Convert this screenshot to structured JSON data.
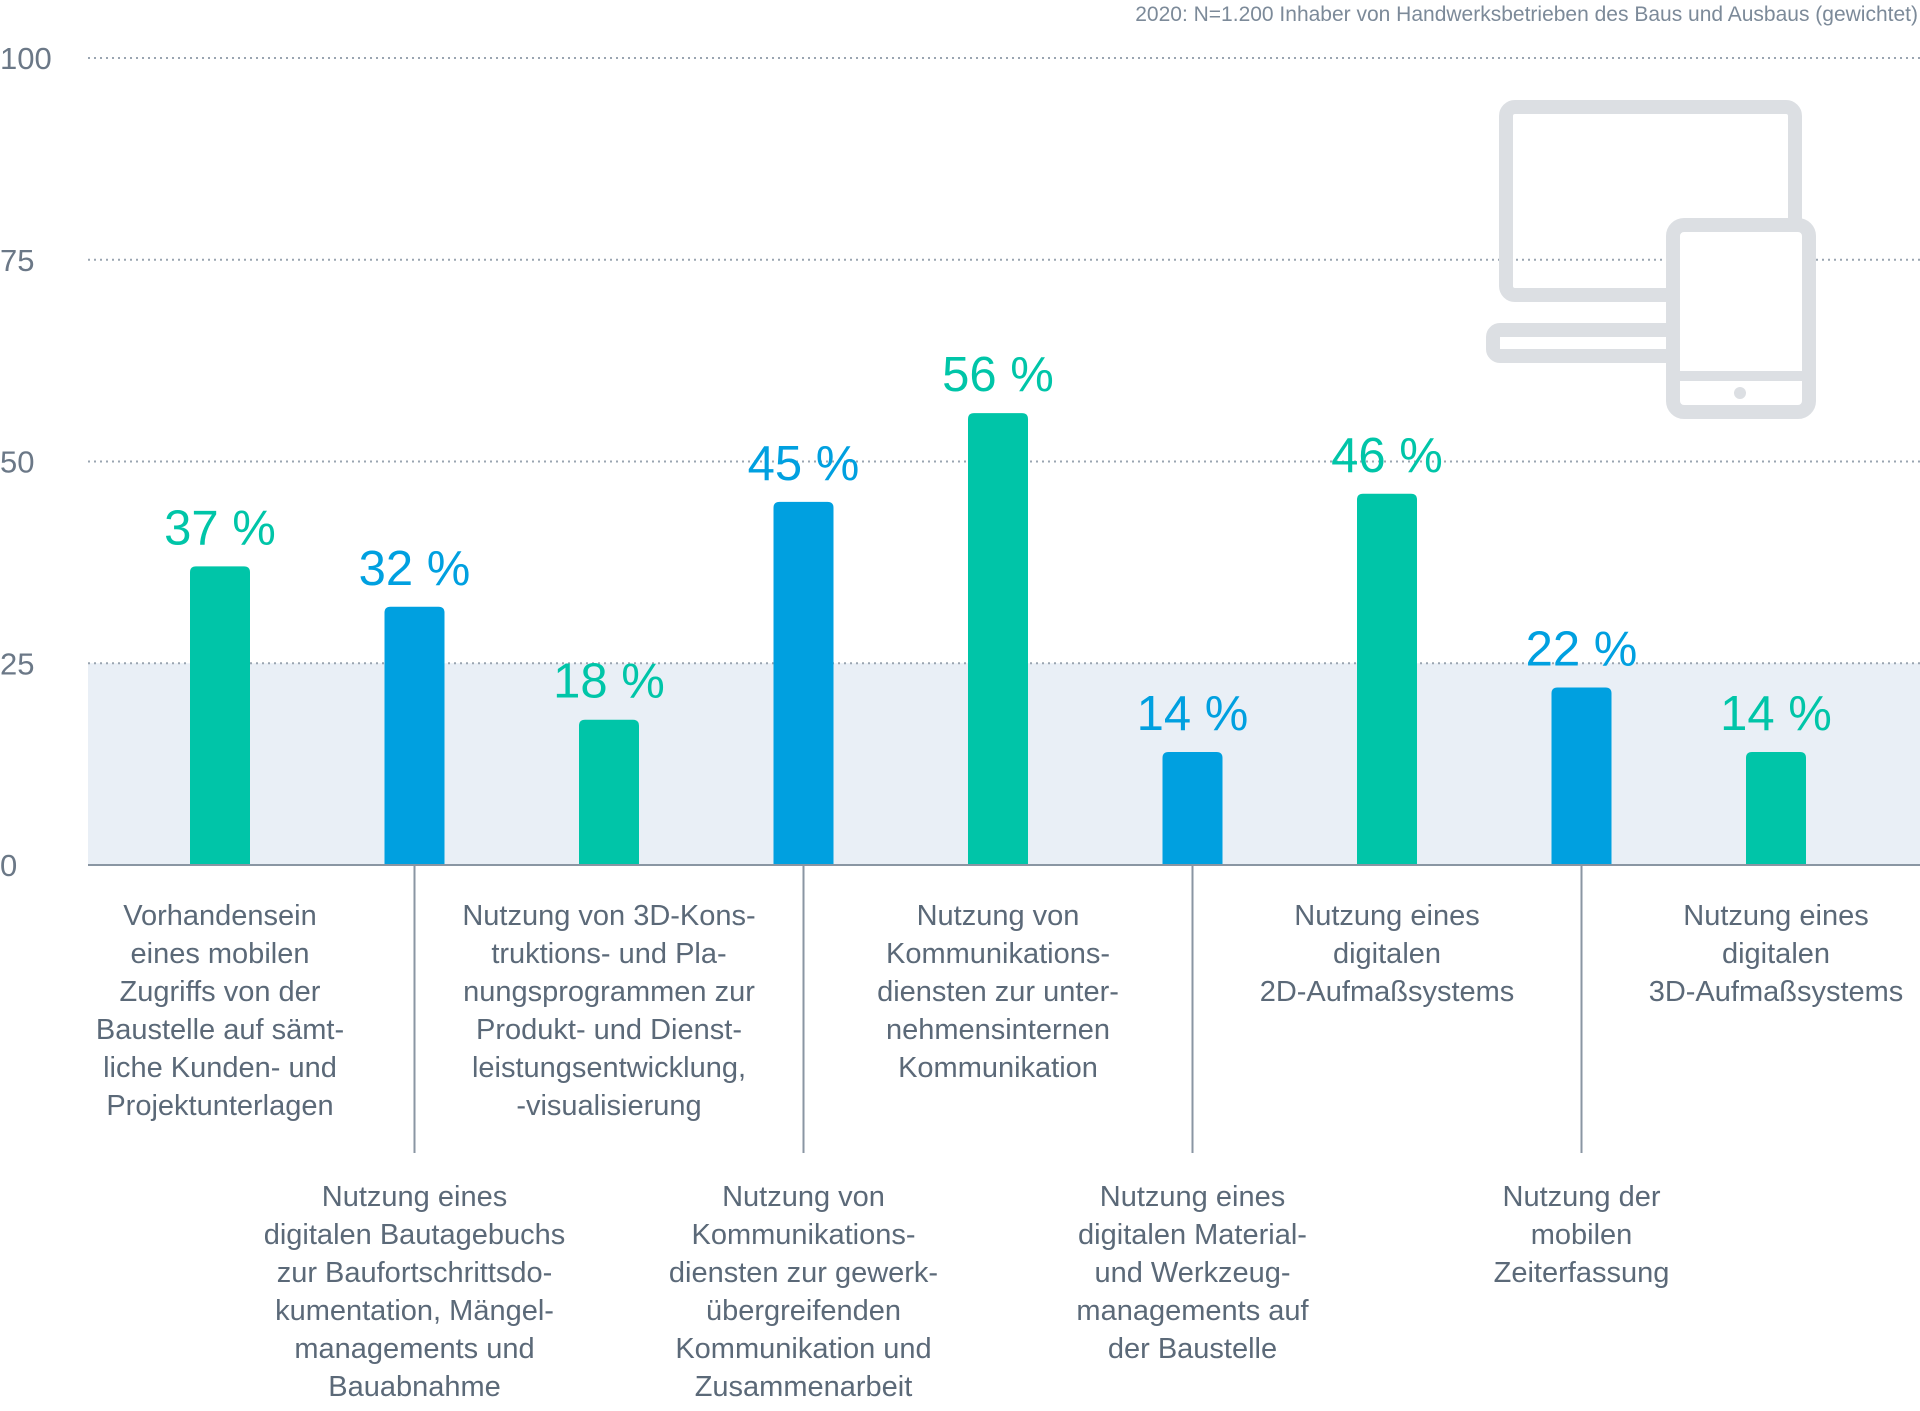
{
  "chart_data": {
    "type": "bar",
    "note": "2020: N=1.200 Inhaber von Handwerksbetrieben des Baus und Ausbaus (gewichtet)",
    "ylim": [
      0,
      100
    ],
    "yticks": [
      0,
      25,
      50,
      75,
      100
    ],
    "unit": "%",
    "categories": [
      "Vorhandensein eines mobilen Zugriffs von der Baustelle auf sämtliche Kunden- und Projektunterlagen",
      "Nutzung eines digitalen Bautagebuchs zur Baufortschrittsdokumentation, Mängelmanagements und Bauabnahme",
      "Nutzung von 3D-Konstruktions- und Planungsprogrammen zur Produkt- und Dienstleistungsentwicklung, -visualisierung",
      "Nutzung von Kommunikationsdiensten zur gewerkübergreifenden Kommunikation und Zusammenarbeit",
      "Nutzung von Kommunikationsdiensten zur unternehmensinternen Kommunikation",
      "Nutzung eines digitalen Material- und Werkzeugmanagements auf der Baustelle",
      "Nutzung eines digitalen 2D-Aufmaßsystems",
      "Nutzung der mobilen Zeiterfassung",
      "Nutzung eines digitalen 3D-Aufmaßsystems"
    ],
    "category_lines": [
      [
        "Vorhandensein",
        "eines mobilen",
        "Zugriffs von der",
        "Baustelle auf sämt-",
        "liche Kunden- und",
        "Projektunterlagen"
      ],
      [
        "Nutzung eines",
        "digitalen Bautagebuchs",
        "zur Baufortschrittsdo-",
        "kumentation, Mängel-",
        "managements und",
        "Bauabnahme"
      ],
      [
        "Nutzung von 3D-Kons-",
        "truktions- und Pla-",
        "nungsprogrammen zur",
        "Produkt- und Dienst-",
        "leistungsentwicklung,",
        "-visualisierung"
      ],
      [
        "Nutzung von",
        "Kommunikations-",
        "diensten zur gewerk-",
        "übergreifenden",
        "Kommunikation und",
        "Zusammenarbeit"
      ],
      [
        "Nutzung von",
        "Kommunikations-",
        "diensten zur unter-",
        "nehmensinternen",
        "Kommunikation"
      ],
      [
        "Nutzung eines",
        "digitalen Material-",
        "und Werkzeug-",
        "managements auf",
        "der Baustelle"
      ],
      [
        "Nutzung eines",
        "digitalen",
        "2D-Aufmaßsystems"
      ],
      [
        "Nutzung der",
        "mobilen",
        "Zeiterfassung"
      ],
      [
        "Nutzung eines",
        "digitalen",
        "3D-Aufmaßsystems"
      ]
    ],
    "values": [
      37,
      32,
      18,
      45,
      56,
      14,
      46,
      22,
      14
    ],
    "value_labels": [
      "37 %",
      "32 %",
      "18 %",
      "45 %",
      "56 %",
      "14 %",
      "46 %",
      "22 %",
      "14 %"
    ],
    "label_rows": [
      "top",
      "bottom",
      "top",
      "bottom",
      "top",
      "bottom",
      "top",
      "bottom",
      "top"
    ],
    "bar_colors": [
      "#00c5a8",
      "#00a0e0",
      "#00c5a8",
      "#00a0e0",
      "#00c5a8",
      "#00a0e0",
      "#00c5a8",
      "#00a0e0",
      "#00c5a8"
    ],
    "grid": "dotted horizontal",
    "shaded_band": [
      0,
      25
    ],
    "colors": {
      "teal": "#00c5a8",
      "blue": "#00a0e0",
      "band": "#e9eff6",
      "grid": "#9aa5b1",
      "axis": "#8a96a3",
      "icon": "#dcdfe3"
    },
    "icon": "desktop-and-tablet-icon"
  }
}
